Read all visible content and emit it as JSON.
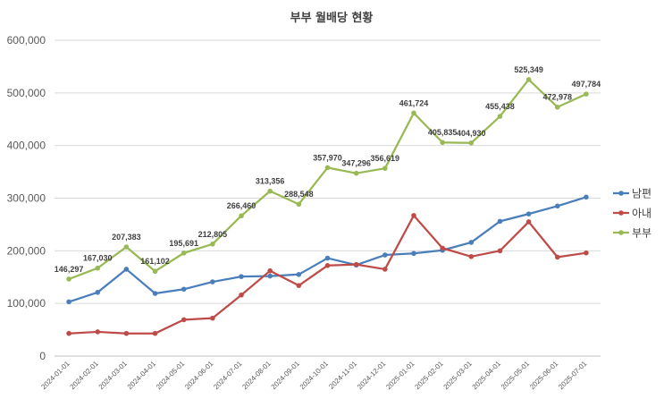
{
  "chart_data": {
    "type": "line",
    "title": "부부 월배당 현황",
    "xlabel": "",
    "ylabel": "",
    "ylim": [
      0,
      600000
    ],
    "y_ticks": [
      "0",
      "100,000",
      "200,000",
      "300,000",
      "400,000",
      "500,000",
      "600,000"
    ],
    "y_tick_values": [
      0,
      100000,
      200000,
      300000,
      400000,
      500000,
      600000
    ],
    "grid": "horizontal",
    "legend_position": "right",
    "categories": [
      "2024-01-01",
      "2024-02-01",
      "2024-03-01",
      "2024-04-01",
      "2024-05-01",
      "2024-06-01",
      "2024-07-01",
      "2024-08-01",
      "2024-09-01",
      "2024-10-01",
      "2024-11-01",
      "2024-12-01",
      "2025-01-01",
      "2025-02-01",
      "2025-03-01",
      "2025-04-01",
      "2025-05-01",
      "2025-06-01",
      "2025-07-01"
    ],
    "series": [
      {
        "name": "남편",
        "color": "#4a7ebb",
        "values": [
          103000,
          121000,
          165000,
          119000,
          127000,
          141000,
          151000,
          152000,
          155000,
          186000,
          173000,
          192000,
          195000,
          201000,
          216000,
          256000,
          270000,
          285000,
          302000
        ]
      },
      {
        "name": "아내",
        "color": "#be4b48",
        "values": [
          43000,
          46000,
          43000,
          43000,
          69000,
          72000,
          116000,
          162000,
          134000,
          172000,
          174000,
          165000,
          267000,
          205000,
          189000,
          200000,
          255000,
          188000,
          196000
        ]
      },
      {
        "name": "부부",
        "color": "#98b954",
        "values": [
          146297,
          167030,
          207383,
          161102,
          195691,
          212805,
          266460,
          313356,
          288548,
          357970,
          347296,
          356619,
          461724,
          405835,
          404930,
          455438,
          525349,
          472978,
          497784
        ],
        "data_labels": [
          "146,297",
          "167,030",
          "207,383",
          "161,102",
          "195,691",
          "212,805",
          "266,460",
          "313,356",
          "288,548",
          "357,970",
          "347,296",
          "356,619",
          "461,724",
          "405,835",
          "404,930",
          "455,438",
          "525,349",
          "472,978",
          "497,784"
        ]
      }
    ]
  }
}
